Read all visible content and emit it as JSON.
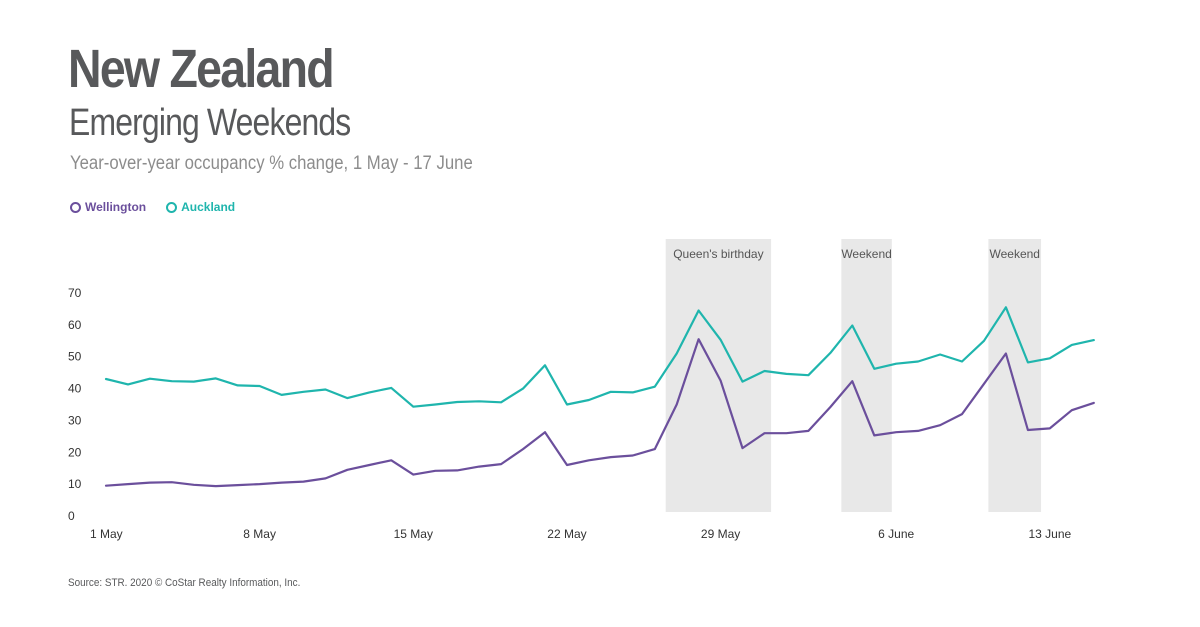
{
  "title": "New Zealand",
  "subtitle": "Emerging Weekends",
  "caption": "Year-over-year occupancy % change, 1 May - 17 June",
  "source": "Source: STR. 2020 © CoStar Realty Information, Inc.",
  "colors": {
    "wellington": "#6b4f9c",
    "auckland": "#1fb5ad",
    "band": "#e8e8e8",
    "text": "#58595b"
  },
  "chart_data": {
    "type": "line",
    "x_start_label": "1 May",
    "x_tick_labels": [
      "1 May",
      "8 May",
      "15 May",
      "22 May",
      "29 May",
      "6 June",
      "13 June"
    ],
    "x_tick_indices": [
      0,
      7,
      14,
      21,
      28,
      36,
      43
    ],
    "ylim": [
      0,
      70
    ],
    "y_ticks": [
      0,
      10,
      20,
      30,
      40,
      50,
      60,
      70
    ],
    "legend_position": "top-left",
    "grid": false,
    "series": [
      {
        "name": "Wellington",
        "color": "#6b4f9c",
        "values": [
          9.5,
          10,
          10.5,
          10.6,
          9.8,
          9.4,
          9.7,
          10,
          10.5,
          10.8,
          11.8,
          14.5,
          16,
          17.5,
          13,
          14.2,
          14.3,
          15.5,
          16.3,
          21,
          26.3,
          16,
          17.5,
          18.5,
          19,
          21,
          35,
          55.5,
          42.5,
          21.3,
          26,
          26,
          26.7,
          34.2,
          42.3,
          25.3,
          26.3,
          26.7,
          28.5,
          32,
          41.5,
          51,
          27,
          27.5,
          33.2,
          35.5
        ]
      },
      {
        "name": "Auckland",
        "color": "#1fb5ad",
        "values": [
          43,
          41.3,
          43.1,
          42.3,
          42.2,
          43.2,
          41,
          40.8,
          38,
          39,
          39.7,
          37,
          38.8,
          40.2,
          34.3,
          35,
          35.8,
          36,
          35.7,
          40,
          47.3,
          35,
          36.4,
          39,
          38.8,
          40.6,
          51,
          64.5,
          55.3,
          42.2,
          45.5,
          44.6,
          44.2,
          51.2,
          59.8,
          46.2,
          47.8,
          48.5,
          50.7,
          48.5,
          55,
          65.5,
          48.2,
          49.5,
          53.7,
          55.2
        ]
      }
    ],
    "highlight_bands": [
      {
        "label": "Queen's birthday",
        "start_index": 25.5,
        "end_index": 30.3
      },
      {
        "label": "Weekend",
        "start_index": 33.5,
        "end_index": 35.8
      },
      {
        "label": "Weekend",
        "start_index": 40.2,
        "end_index": 42.6
      }
    ]
  }
}
